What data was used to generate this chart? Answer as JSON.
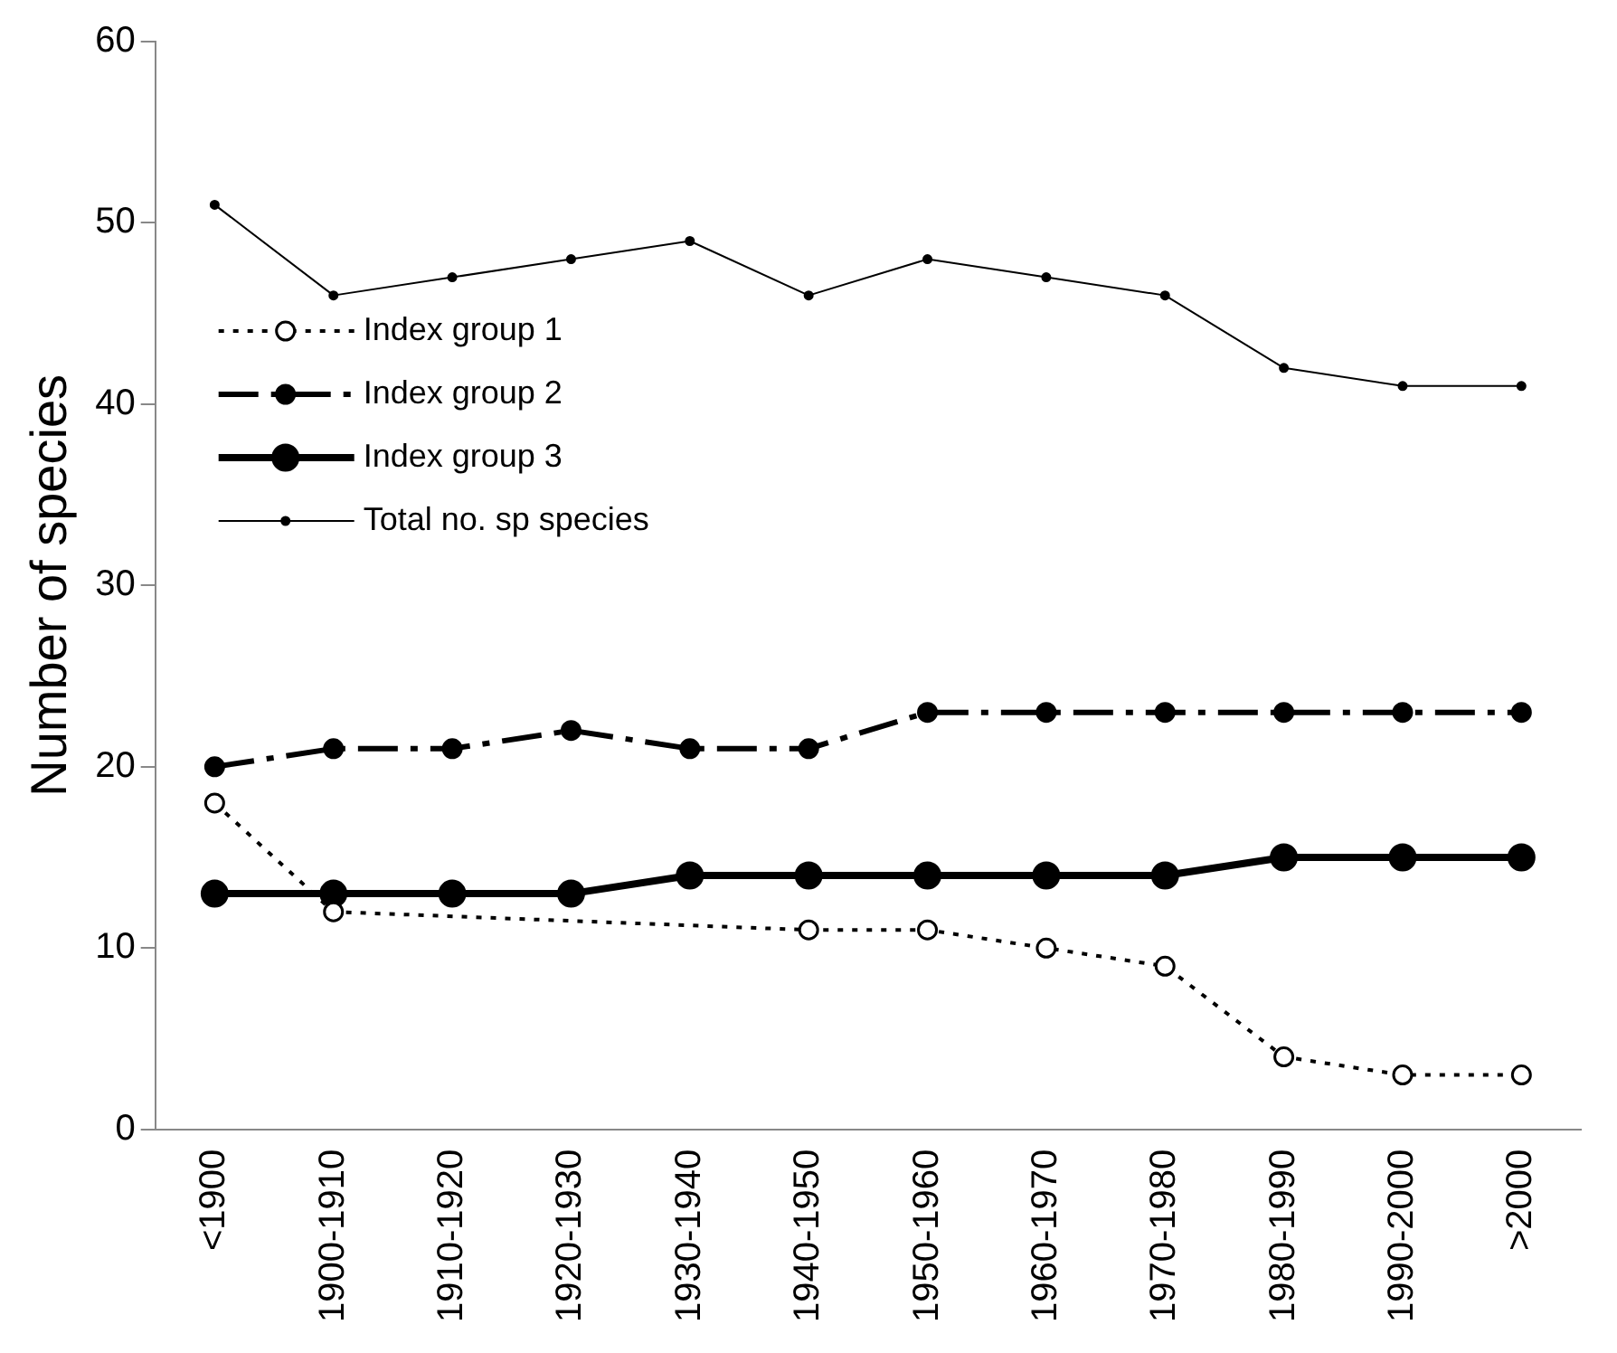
{
  "chart_data": {
    "type": "line",
    "ylabel": "Number of species",
    "categories": [
      "<1900",
      "1900-1910",
      "1910-1920",
      "1920-1930",
      "1930-1940",
      "1940-1950",
      "1950-1960",
      "1960-1970",
      "1970-1980",
      "1980-1990",
      "1990-2000",
      ">2000"
    ],
    "series": [
      {
        "name": "Index group 1",
        "color": "#000000",
        "marker": "circle",
        "line_style": "dotted",
        "values": [
          18,
          12,
          null,
          null,
          null,
          11,
          11,
          10,
          9,
          4,
          3,
          3
        ]
      },
      {
        "name": "Index group 2",
        "color": "#000000",
        "marker": "circle",
        "line_style": "dashed",
        "values": [
          20,
          21,
          21,
          22,
          21,
          21,
          23,
          23,
          23,
          23,
          23,
          23
        ]
      },
      {
        "name": "Index group 3",
        "color": "#000000",
        "marker": "circle",
        "line_style": "solid",
        "values": [
          13,
          13,
          13,
          13,
          14,
          14,
          14,
          14,
          14,
          15,
          15,
          15
        ]
      },
      {
        "name": "Total no. sp species",
        "color": "#000000",
        "marker": "circle",
        "line_style": "solid",
        "values": [
          51,
          46,
          47,
          48,
          49,
          46,
          48,
          47,
          46,
          42,
          41,
          41
        ]
      }
    ],
    "ylim": [
      0,
      60
    ],
    "yticks": [
      0,
      10,
      20,
      30,
      40,
      50,
      60
    ],
    "grid": false,
    "legend": "top left"
  }
}
